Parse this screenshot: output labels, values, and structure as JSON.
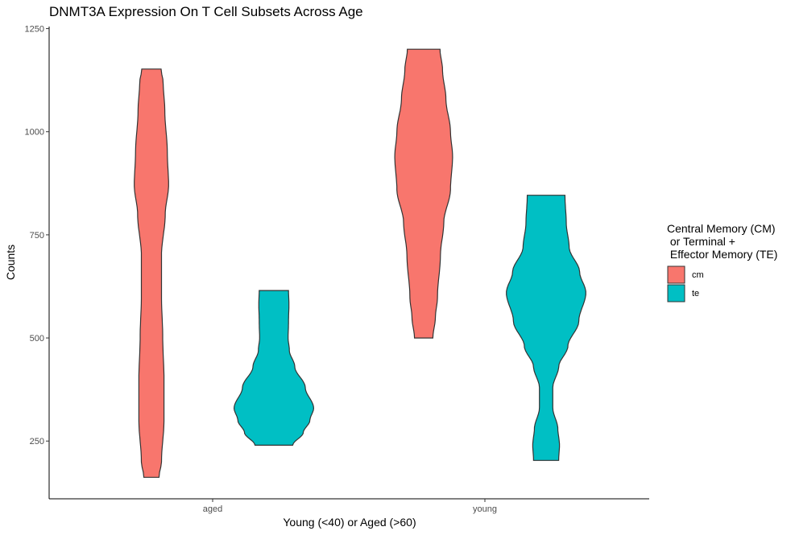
{
  "chart_data": {
    "type": "violin",
    "title": "DNMT3A Expression On T Cell Subsets Across Age",
    "xlabel": "Young (<40) or Aged (>60)",
    "ylabel": "Counts",
    "categories": [
      "aged",
      "young"
    ],
    "ylim": [
      110,
      1255
    ],
    "yticks": [
      250,
      500,
      750,
      1000,
      1250
    ],
    "grid": false,
    "legend": {
      "title_lines": [
        "Central Memory (CM)",
        " or Terminal +",
        " Effector Memory (TE)"
      ],
      "placement": "right",
      "entries": [
        {
          "label": "cm",
          "color": "#F8766D"
        },
        {
          "label": "te",
          "color": "#00BFC4"
        }
      ]
    },
    "series": [
      {
        "category": "aged",
        "group": "cm",
        "color": "#F8766D",
        "min": 162,
        "max": 1152,
        "density": [
          [
            162,
            0.18
          ],
          [
            200,
            0.24
          ],
          [
            300,
            0.3
          ],
          [
            400,
            0.3
          ],
          [
            500,
            0.27
          ],
          [
            600,
            0.24
          ],
          [
            700,
            0.24
          ],
          [
            800,
            0.33
          ],
          [
            870,
            0.41
          ],
          [
            950,
            0.38
          ],
          [
            1050,
            0.32
          ],
          [
            1120,
            0.28
          ],
          [
            1152,
            0.23
          ]
        ]
      },
      {
        "category": "aged",
        "group": "te",
        "color": "#00BFC4",
        "min": 240,
        "max": 615,
        "density": [
          [
            240,
            0.45
          ],
          [
            270,
            0.7
          ],
          [
            300,
            0.86
          ],
          [
            330,
            0.95
          ],
          [
            380,
            0.75
          ],
          [
            430,
            0.5
          ],
          [
            470,
            0.37
          ],
          [
            500,
            0.34
          ],
          [
            540,
            0.35
          ],
          [
            580,
            0.36
          ],
          [
            615,
            0.35
          ]
        ]
      },
      {
        "category": "young",
        "group": "cm",
        "color": "#F8766D",
        "min": 500,
        "max": 1200,
        "density": [
          [
            500,
            0.22
          ],
          [
            550,
            0.28
          ],
          [
            600,
            0.33
          ],
          [
            700,
            0.4
          ],
          [
            780,
            0.48
          ],
          [
            860,
            0.64
          ],
          [
            940,
            0.69
          ],
          [
            1000,
            0.64
          ],
          [
            1080,
            0.53
          ],
          [
            1150,
            0.45
          ],
          [
            1200,
            0.39
          ]
        ]
      },
      {
        "category": "young",
        "group": "te",
        "color": "#00BFC4",
        "min": 203,
        "max": 846,
        "density": [
          [
            203,
            0.3
          ],
          [
            240,
            0.32
          ],
          [
            280,
            0.28
          ],
          [
            330,
            0.16
          ],
          [
            380,
            0.16
          ],
          [
            430,
            0.3
          ],
          [
            480,
            0.52
          ],
          [
            540,
            0.78
          ],
          [
            610,
            0.95
          ],
          [
            660,
            0.8
          ],
          [
            720,
            0.55
          ],
          [
            780,
            0.48
          ],
          [
            846,
            0.45
          ]
        ]
      }
    ]
  }
}
